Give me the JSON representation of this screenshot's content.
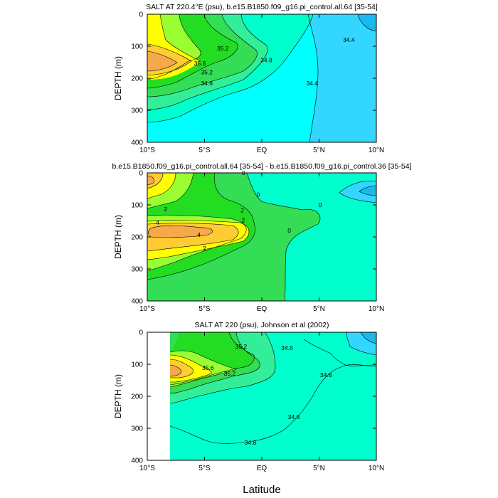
{
  "figure": {
    "x_label": "Latitude",
    "colors": {
      "fresh_cyan": "#00ffff",
      "light_blue": "#33d6ff",
      "blue": "#1ab8ee",
      "aqua": "#00ffcc",
      "teal_green": "#33ee99",
      "green": "#33dd55",
      "bright_green": "#22dd22",
      "yellow_green": "#99ff33",
      "yellow": "#ffff00",
      "gold": "#ffcc33",
      "orange": "#f5a94a",
      "line": "#000000"
    }
  },
  "chart_data": [
    {
      "type": "contour",
      "title": "SALT AT 220.4°E (psu), b.e15.B1850.f09_g16.pi_control.all.64 [35-54]",
      "xlabel": "",
      "ylabel": "DEPTH (m)",
      "xlim": [
        -10,
        10
      ],
      "ylim": [
        400,
        0
      ],
      "xticks": [
        -10,
        -5,
        0,
        5,
        10
      ],
      "xtick_labels": [
        "10°S",
        "5°S",
        "EQ",
        "5°N",
        "10°N"
      ],
      "yticks": [
        0,
        100,
        200,
        300,
        400
      ],
      "ytick_labels": [
        "0",
        "100",
        "200",
        "300",
        "400"
      ],
      "contour_labels": [
        {
          "text": "35.2",
          "x": -3.4,
          "y": 107
        },
        {
          "text": "35.6",
          "x": -5.4,
          "y": 153
        },
        {
          "text": "35.2",
          "x": -4.8,
          "y": 181
        },
        {
          "text": "34.8",
          "x": -4.8,
          "y": 215
        },
        {
          "text": "34.8",
          "x": 0.4,
          "y": 143
        },
        {
          "text": "34.4",
          "x": 7.6,
          "y": 80
        },
        {
          "text": "34.4",
          "x": 4.4,
          "y": 215
        }
      ]
    },
    {
      "type": "contour",
      "title": "b.e15.B1850.f09_g16.pi_control.all.64 [35-54] - b.e15.B1850.f09_g16.pi_control.36 [35-54]",
      "xlabel": "",
      "ylabel": "DEPTH (m)",
      "xlim": [
        -10,
        10
      ],
      "ylim": [
        400,
        0
      ],
      "xticks": [
        -10,
        -5,
        0,
        5,
        10
      ],
      "xtick_labels": [
        "10°S",
        "5°S",
        "EQ",
        "5°N",
        "10°N"
      ],
      "yticks": [
        0,
        100,
        200,
        300,
        400
      ],
      "ytick_labels": [
        "0",
        "100",
        "200",
        "300",
        "400"
      ],
      "contour_labels": [
        {
          "text": "0",
          "x": -1.6,
          "y": 0
        },
        {
          "text": "0",
          "x": -0.3,
          "y": 68
        },
        {
          "text": "0",
          "x": 5.1,
          "y": 100
        },
        {
          "text": "0",
          "x": 2.4,
          "y": 180
        },
        {
          "text": "2",
          "x": -8.4,
          "y": 113
        },
        {
          "text": "4",
          "x": -9.1,
          "y": 155
        },
        {
          "text": "4",
          "x": -5.5,
          "y": 193
        },
        {
          "text": "2",
          "x": -1.7,
          "y": 117
        },
        {
          "text": ".2",
          "x": -1.7,
          "y": 148
        },
        {
          "text": "2",
          "x": -5.0,
          "y": 236
        }
      ]
    },
    {
      "type": "contour",
      "title": "SALT AT 220 (psu), Johnson et al (2002)",
      "xlabel": "Latitude",
      "ylabel": "DEPTH (m)",
      "xlim": [
        -10,
        10
      ],
      "ylim": [
        400,
        0
      ],
      "xticks": [
        -10,
        -5,
        0,
        5,
        10
      ],
      "xtick_labels": [
        "10°S",
        "5°S",
        "EQ",
        "5°N",
        "10°N"
      ],
      "yticks": [
        0,
        100,
        200,
        300,
        400
      ],
      "ytick_labels": [
        "0",
        "100",
        "200",
        "300",
        "400"
      ],
      "data_lon_min": -8,
      "contour_labels": [
        {
          "text": "35.2",
          "x": -1.8,
          "y": 44
        },
        {
          "text": "35.6",
          "x": -4.7,
          "y": 111
        },
        {
          "text": "35.2",
          "x": -2.8,
          "y": 129
        },
        {
          "text": "34.8",
          "x": 2.2,
          "y": 49
        },
        {
          "text": "34.8",
          "x": 5.6,
          "y": 133
        },
        {
          "text": "34.8",
          "x": 2.8,
          "y": 264
        },
        {
          "text": "34.8",
          "x": -1.0,
          "y": 344
        }
      ]
    }
  ]
}
